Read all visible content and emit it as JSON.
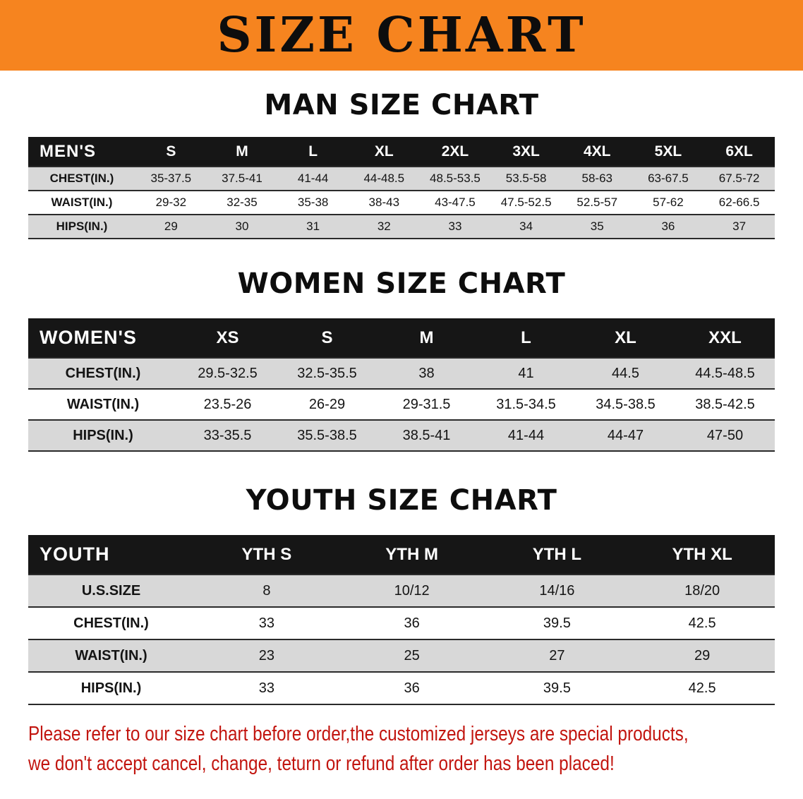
{
  "banner": {
    "title": "SIZE CHART"
  },
  "men": {
    "heading": "MAN SIZE CHART",
    "header": [
      "MEN'S",
      "S",
      "M",
      "L",
      "XL",
      "2XL",
      "3XL",
      "4XL",
      "5XL",
      "6XL"
    ],
    "rows": [
      [
        "CHEST(IN.)",
        "35-37.5",
        "37.5-41",
        "41-44",
        "44-48.5",
        "48.5-53.5",
        "53.5-58",
        "58-63",
        "63-67.5",
        "67.5-72"
      ],
      [
        "WAIST(IN.)",
        "29-32",
        "32-35",
        "35-38",
        "38-43",
        "43-47.5",
        "47.5-52.5",
        "52.5-57",
        "57-62",
        "62-66.5"
      ],
      [
        "HIPS(IN.)",
        "29",
        "30",
        "31",
        "32",
        "33",
        "34",
        "35",
        "36",
        "37"
      ]
    ]
  },
  "women": {
    "heading": "WOMEN SIZE CHART",
    "header": [
      "WOMEN'S",
      "XS",
      "S",
      "M",
      "L",
      "XL",
      "XXL"
    ],
    "rows": [
      [
        "CHEST(IN.)",
        "29.5-32.5",
        "32.5-35.5",
        "38",
        "41",
        "44.5",
        "44.5-48.5"
      ],
      [
        "WAIST(IN.)",
        "23.5-26",
        "26-29",
        "29-31.5",
        "31.5-34.5",
        "34.5-38.5",
        "38.5-42.5"
      ],
      [
        "HIPS(IN.)",
        "33-35.5",
        "35.5-38.5",
        "38.5-41",
        "41-44",
        "44-47",
        "47-50"
      ]
    ]
  },
  "youth": {
    "heading": "YOUTH SIZE CHART",
    "header": [
      "YOUTH",
      "YTH S",
      "YTH M",
      "YTH L",
      "YTH XL"
    ],
    "rows": [
      [
        "U.S.SIZE",
        "8",
        "10/12",
        "14/16",
        "18/20"
      ],
      [
        "CHEST(IN.)",
        "33",
        "36",
        "39.5",
        "42.5"
      ],
      [
        "WAIST(IN.)",
        "23",
        "25",
        "27",
        "29"
      ],
      [
        "HIPS(IN.)",
        "33",
        "36",
        "39.5",
        "42.5"
      ]
    ]
  },
  "footer": {
    "line1": "Please refer to our size chart before order,the customized jerseys are special products,",
    "line2": "we don't accept cancel, change, teturn or refund after order has been placed!"
  },
  "colors": {
    "banner_bg": "#f6841f",
    "title_text": "#0d0d0d",
    "table_header_bg": "#161616",
    "table_header_text": "#ffffff",
    "row_shaded": "#d8d8d8",
    "row_plain": "#ffffff",
    "row_border": "#2a2a2a",
    "footer_text": "#c2150f"
  }
}
